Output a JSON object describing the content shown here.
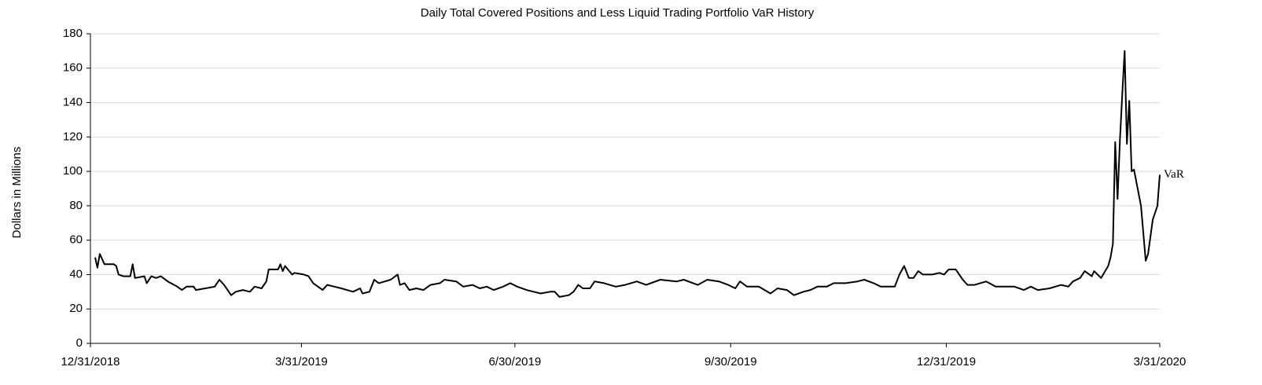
{
  "chart_data": {
    "type": "line",
    "title": "Daily Total Covered Positions and Less Liquid Trading Portfolio VaR History",
    "y_label": "Dollars in Millions",
    "x": [
      "1/2/2019",
      "1/3/2019",
      "1/4/2019",
      "1/6/2019",
      "1/10/2019",
      "1/11/2019",
      "1/12/2019",
      "1/14/2019",
      "1/17/2019",
      "1/18/2019",
      "1/19/2019",
      "1/23/2019",
      "1/24/2019",
      "1/26/2019",
      "1/28/2019",
      "1/30/2019",
      "2/2/2019",
      "2/6/2019",
      "2/8/2019",
      "2/10/2019",
      "2/13/2019",
      "2/14/2019",
      "2/18/2019",
      "2/22/2019",
      "2/24/2019",
      "2/26/2019",
      "3/1/2019",
      "3/3/2019",
      "3/6/2019",
      "3/9/2019",
      "3/11/2019",
      "3/14/2019",
      "3/16/2019",
      "3/17/2019",
      "3/21/2019",
      "3/22/2019",
      "3/23/2019",
      "3/24/2019",
      "3/27/2019",
      "3/28/2019",
      "4/1/2019",
      "4/3/2019",
      "4/5/2019",
      "4/9/2019",
      "4/11/2019",
      "4/14/2019",
      "4/17/2019",
      "4/22/2019",
      "4/25/2019",
      "4/26/2019",
      "4/29/2019",
      "5/1/2019",
      "5/3/2019",
      "5/8/2019",
      "5/11/2019",
      "5/12/2019",
      "5/14/2019",
      "5/16/2019",
      "5/19/2019",
      "5/22/2019",
      "5/25/2019",
      "5/29/2019",
      "5/31/2019",
      "6/5/2019",
      "6/8/2019",
      "6/12/2019",
      "6/15/2019",
      "6/18/2019",
      "6/21/2019",
      "6/25/2019",
      "6/28/2019",
      "7/1/2019",
      "7/5/2019",
      "7/8/2019",
      "7/11/2019",
      "7/15/2019",
      "7/17/2019",
      "7/19/2019",
      "7/23/2019",
      "7/25/2019",
      "7/27/2019",
      "7/29/2019",
      "8/1/2019",
      "8/3/2019",
      "8/7/2019",
      "8/12/2019",
      "8/16/2019",
      "8/21/2019",
      "8/25/2019",
      "8/31/2019",
      "9/7/2019",
      "9/10/2019",
      "9/14/2019",
      "9/16/2019",
      "9/20/2019",
      "9/25/2019",
      "9/29/2019",
      "10/2/2019",
      "10/4/2019",
      "10/7/2019",
      "10/12/2019",
      "10/17/2019",
      "10/20/2019",
      "10/24/2019",
      "10/27/2019",
      "10/31/2019",
      "11/3/2019",
      "11/6/2019",
      "11/10/2019",
      "11/13/2019",
      "11/18/2019",
      "11/23/2019",
      "11/26/2019",
      "11/30/2019",
      "12/3/2019",
      "12/9/2019",
      "12/11/2019",
      "12/13/2019",
      "12/15/2019",
      "12/17/2019",
      "12/19/2019",
      "12/21/2019",
      "12/25/2019",
      "12/28/2019",
      "12/30/2019",
      "1/1/2020",
      "1/4/2020",
      "1/7/2020",
      "1/9/2020",
      "1/12/2020",
      "1/17/2020",
      "1/21/2020",
      "1/26/2020",
      "1/29/2020",
      "2/2/2020",
      "2/5/2020",
      "2/8/2020",
      "2/13/2020",
      "2/18/2020",
      "2/21/2020",
      "2/23/2020",
      "2/26/2020",
      "2/28/2020",
      "3/2/2020",
      "3/3/2020",
      "3/6/2020",
      "3/9/2020",
      "3/10/2020",
      "3/11/2020",
      "3/12/2020",
      "3/13/2020",
      "3/14/2020",
      "3/15/2020",
      "3/16/2020",
      "3/17/2020",
      "3/18/2020",
      "3/19/2020",
      "3/20/2020",
      "3/23/2020",
      "3/25/2020",
      "3/26/2020",
      "3/28/2020",
      "3/30/2020",
      "3/31/2020"
    ],
    "series": [
      {
        "name": "VaR",
        "color": "#000000",
        "values": [
          50,
          44,
          52,
          46,
          46,
          45,
          40,
          39,
          39,
          46,
          38,
          39,
          35,
          39,
          38,
          39,
          36,
          33,
          31,
          33,
          33,
          31,
          32,
          33,
          37,
          34,
          28,
          30,
          31,
          30,
          33,
          32,
          36,
          43,
          43,
          46,
          42,
          45,
          40,
          41,
          40,
          39,
          35,
          31,
          34,
          33,
          32,
          30,
          32,
          29,
          30,
          37,
          35,
          37,
          40,
          34,
          35,
          31,
          32,
          31,
          34,
          35,
          37,
          36,
          33,
          34,
          32,
          33,
          31,
          33,
          35,
          33,
          31,
          30,
          29,
          30,
          30,
          27,
          28,
          30,
          34,
          32,
          32,
          36,
          35,
          33,
          34,
          36,
          34,
          37,
          36,
          37,
          35,
          34,
          37,
          36,
          34,
          32,
          36,
          33,
          33,
          29,
          32,
          31,
          28,
          30,
          31,
          33,
          33,
          35,
          35,
          36,
          37,
          35,
          33,
          33,
          40,
          45,
          38,
          38,
          42,
          40,
          40,
          41,
          40,
          43,
          43,
          37,
          34,
          34,
          36,
          33,
          33,
          33,
          31,
          33,
          31,
          32,
          34,
          33,
          36,
          38,
          42,
          39,
          42,
          38,
          45,
          50,
          58,
          117,
          84,
          118,
          145,
          170,
          116,
          141,
          100,
          101,
          80,
          48,
          52,
          72,
          80,
          98
        ]
      }
    ],
    "xlim": [
      "12/31/2018",
      "3/31/2020"
    ],
    "xticks": [
      "12/31/2018",
      "3/31/2019",
      "6/30/2019",
      "9/30/2019",
      "12/31/2019",
      "3/31/2020"
    ],
    "ylim": [
      0,
      180
    ],
    "yticks": [
      0,
      20,
      40,
      60,
      80,
      100,
      120,
      140,
      160,
      180
    ],
    "grid": true
  }
}
